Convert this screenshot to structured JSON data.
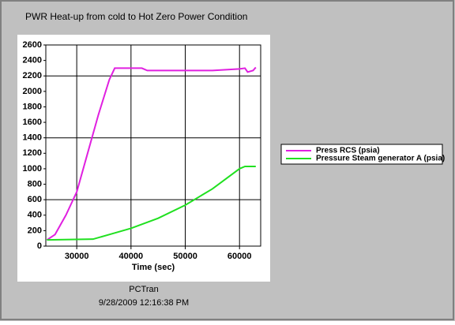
{
  "chart_data": {
    "type": "line",
    "title": "PWR Heat-up from cold to Hot Zero Power Condition",
    "x_label": "Time (sec)",
    "footer": [
      "PCTran",
      "9/28/2009 12:16:38 PM"
    ],
    "xlim": [
      24300,
      63900
    ],
    "xticks": [
      30000,
      40000,
      50000,
      60000
    ],
    "ylim": [
      0,
      2600
    ],
    "yticks": [
      0,
      200,
      400,
      600,
      800,
      1000,
      1200,
      1400,
      1600,
      1800,
      2000,
      2200,
      2400,
      2600
    ],
    "ygrid": [
      600,
      1400,
      2200
    ],
    "grid": true,
    "legend": "right",
    "series": [
      {
        "name": "Press RCS (psia)",
        "color": "#e020e0",
        "x": [
          24500,
          26000,
          28000,
          30000,
          32000,
          34000,
          36000,
          37000,
          42000,
          43000,
          50000,
          55000,
          60000,
          61000,
          61500,
          62500,
          63000
        ],
        "values": [
          80,
          150,
          400,
          700,
          1200,
          1700,
          2150,
          2300,
          2300,
          2270,
          2270,
          2270,
          2290,
          2300,
          2250,
          2270,
          2310
        ]
      },
      {
        "name": "Pressure Steam generator A (psia)",
        "color": "#20e020",
        "x": [
          24500,
          33000,
          36000,
          40000,
          45000,
          50000,
          55000,
          60000,
          61000,
          63000
        ],
        "values": [
          80,
          90,
          150,
          230,
          360,
          530,
          740,
          1000,
          1030,
          1030
        ]
      }
    ]
  }
}
